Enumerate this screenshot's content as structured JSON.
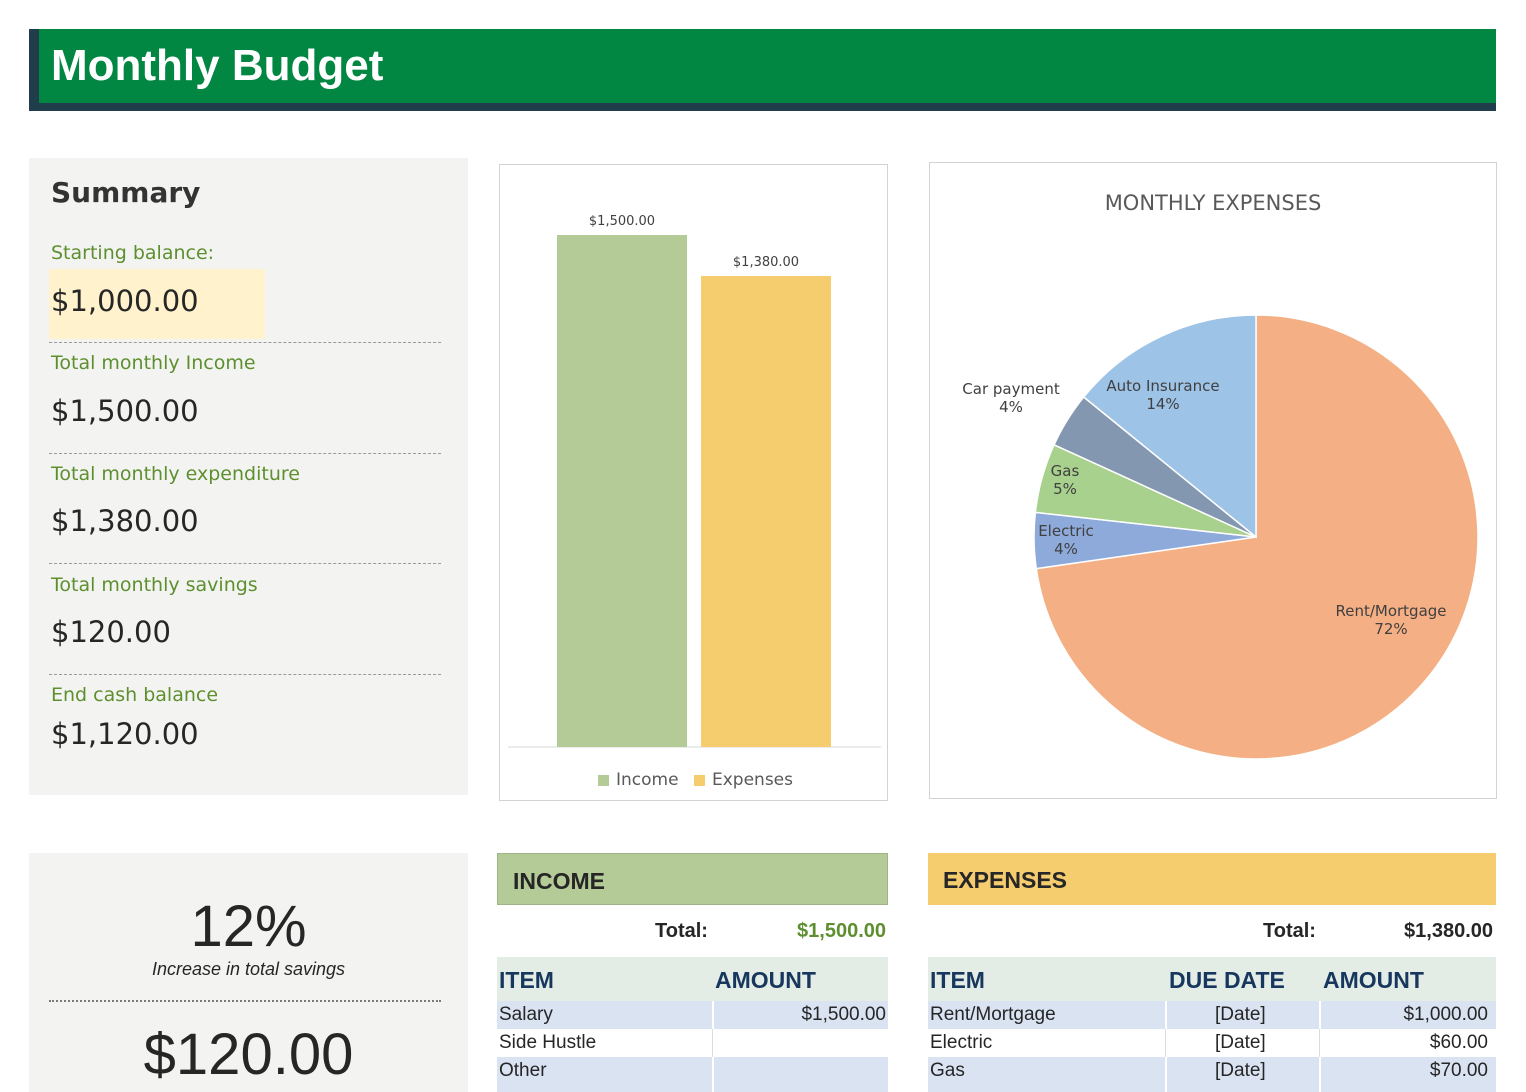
{
  "header": {
    "title": "Monthly Budget"
  },
  "summary": {
    "heading": "Summary",
    "items": [
      {
        "label": "Starting balance:",
        "value": "$1,000.00"
      },
      {
        "label": "Total monthly Income",
        "value": "$1,500.00"
      },
      {
        "label": "Total monthly expenditure",
        "value": "$1,380.00"
      },
      {
        "label": "Total monthly savings",
        "value": "$120.00"
      },
      {
        "label": "End cash balance",
        "value": "$1,120.00"
      }
    ]
  },
  "savings": {
    "percent": "12%",
    "percent_label": "Increase in total savings",
    "amount": "$120.00"
  },
  "colors": {
    "header": "#028743",
    "header_dark": "#1f3d4a",
    "income": "#b4ca97",
    "expenses": "#f5cd6e",
    "rent": "#f4af84",
    "electric": "#8eaadb",
    "gas": "#a9d18e",
    "car_payment": "#8497b0",
    "auto_insurance": "#9dc3e6",
    "label_green": "#5e8f2e",
    "table_blue": "#dae3f2"
  },
  "chart_data": [
    {
      "type": "bar",
      "categories": [
        "Income",
        "Expenses"
      ],
      "values": [
        1500,
        1380
      ],
      "data_labels": [
        "$1,500.00",
        "$1,380.00"
      ],
      "legend": [
        "Income",
        "Expenses"
      ],
      "legend_position": "bottom",
      "title": "",
      "ylim": [
        0,
        1500
      ],
      "grid": false
    },
    {
      "type": "pie",
      "title": "MONTHLY EXPENSES",
      "slices": [
        {
          "name": "Rent/Mortgage",
          "value": 72,
          "label": "72%"
        },
        {
          "name": "Electric",
          "value": 4,
          "label": "4%"
        },
        {
          "name": "Gas",
          "value": 5,
          "label": "5%"
        },
        {
          "name": "Car payment",
          "value": 4,
          "label": "4%"
        },
        {
          "name": "Auto Insurance",
          "value": 14,
          "label": "14%"
        }
      ]
    }
  ],
  "income_table": {
    "title": "INCOME",
    "total_label": "Total:",
    "total_value": "$1,500.00",
    "columns": [
      "ITEM",
      "AMOUNT"
    ],
    "rows": [
      {
        "item": "Salary",
        "amount": "$1,500.00"
      },
      {
        "item": "Side Hustle",
        "amount": ""
      },
      {
        "item": "Other",
        "amount": ""
      }
    ]
  },
  "expenses_table": {
    "title": "EXPENSES",
    "total_label": "Total:",
    "total_value": "$1,380.00",
    "columns": [
      "ITEM",
      "DUE DATE",
      "AMOUNT"
    ],
    "rows": [
      {
        "item": "Rent/Mortgage",
        "due": "[Date]",
        "amount": "$1,000.00"
      },
      {
        "item": "Electric",
        "due": "[Date]",
        "amount": "$60.00"
      },
      {
        "item": "Gas",
        "due": "[Date]",
        "amount": "$70.00"
      }
    ]
  }
}
